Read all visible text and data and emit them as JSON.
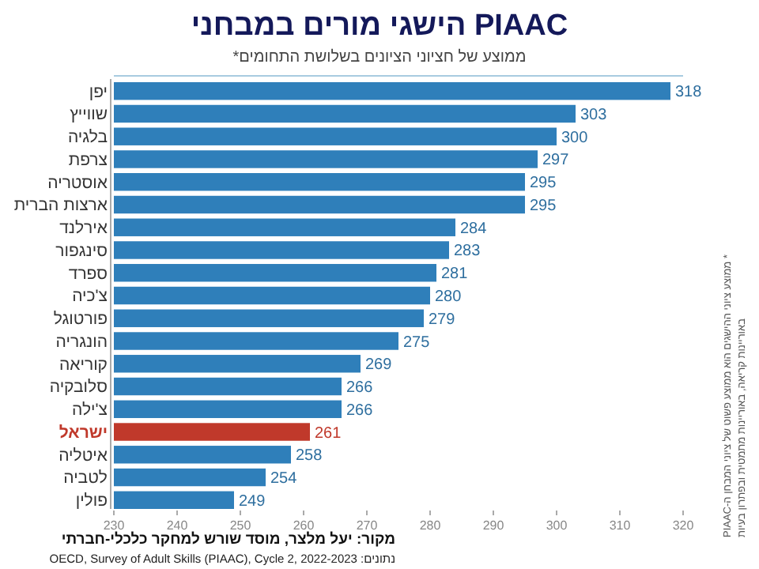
{
  "chart_data": {
    "type": "bar",
    "orientation": "horizontal",
    "title": "הישגי מורים במבחני PIAAC",
    "subtitle": "ממוצע של חציוני הציונים בשלושת התחומים*",
    "categories": [
      "יפן",
      "שווייץ",
      "בלגיה",
      "צרפת",
      "אוסטריה",
      "ארצות הברית",
      "אירלנד",
      "סינגפור",
      "ספרד",
      "צ'כיה",
      "פורטוגל",
      "הונגריה",
      "קוריאה",
      "סלובקיה",
      "צ'ילה",
      "ישראל",
      "איטליה",
      "לטביה",
      "פולין"
    ],
    "values": [
      318,
      303,
      300,
      297,
      295,
      295,
      284,
      283,
      281,
      280,
      279,
      275,
      269,
      266,
      266,
      261,
      258,
      254,
      249
    ],
    "color": "#2f7fba",
    "colors": [
      "#2f7fba",
      "#2f7fba",
      "#2f7fba",
      "#2f7fba",
      "#2f7fba",
      "#2f7fba",
      "#2f7fba",
      "#2f7fba",
      "#2f7fba",
      "#2f7fba",
      "#2f7fba",
      "#2f7fba",
      "#2f7fba",
      "#2f7fba",
      "#2f7fba",
      "#c0392b",
      "#2f7fba",
      "#2f7fba",
      "#2f7fba"
    ],
    "xlim": [
      230,
      320
    ],
    "xticks": [
      230,
      240,
      250,
      260,
      270,
      280,
      290,
      300,
      310,
      320
    ],
    "data_labels": true,
    "grid": false,
    "annotations": [
      "מקור: יעל מלצר, מוסד שורש למחקר כלכלי-חברתי",
      "נתונים: OECD, Survey of Adult Skills (PIAAC), Cycle 2, 2022-2023",
      "* ממוצע ציוני ההישגים הוא ממוצע פשוט של ציוני המבחן ה-PIAAC",
      "באוריינות קריאה, באוריינות מתמטית ובפתרון בעיות"
    ]
  }
}
